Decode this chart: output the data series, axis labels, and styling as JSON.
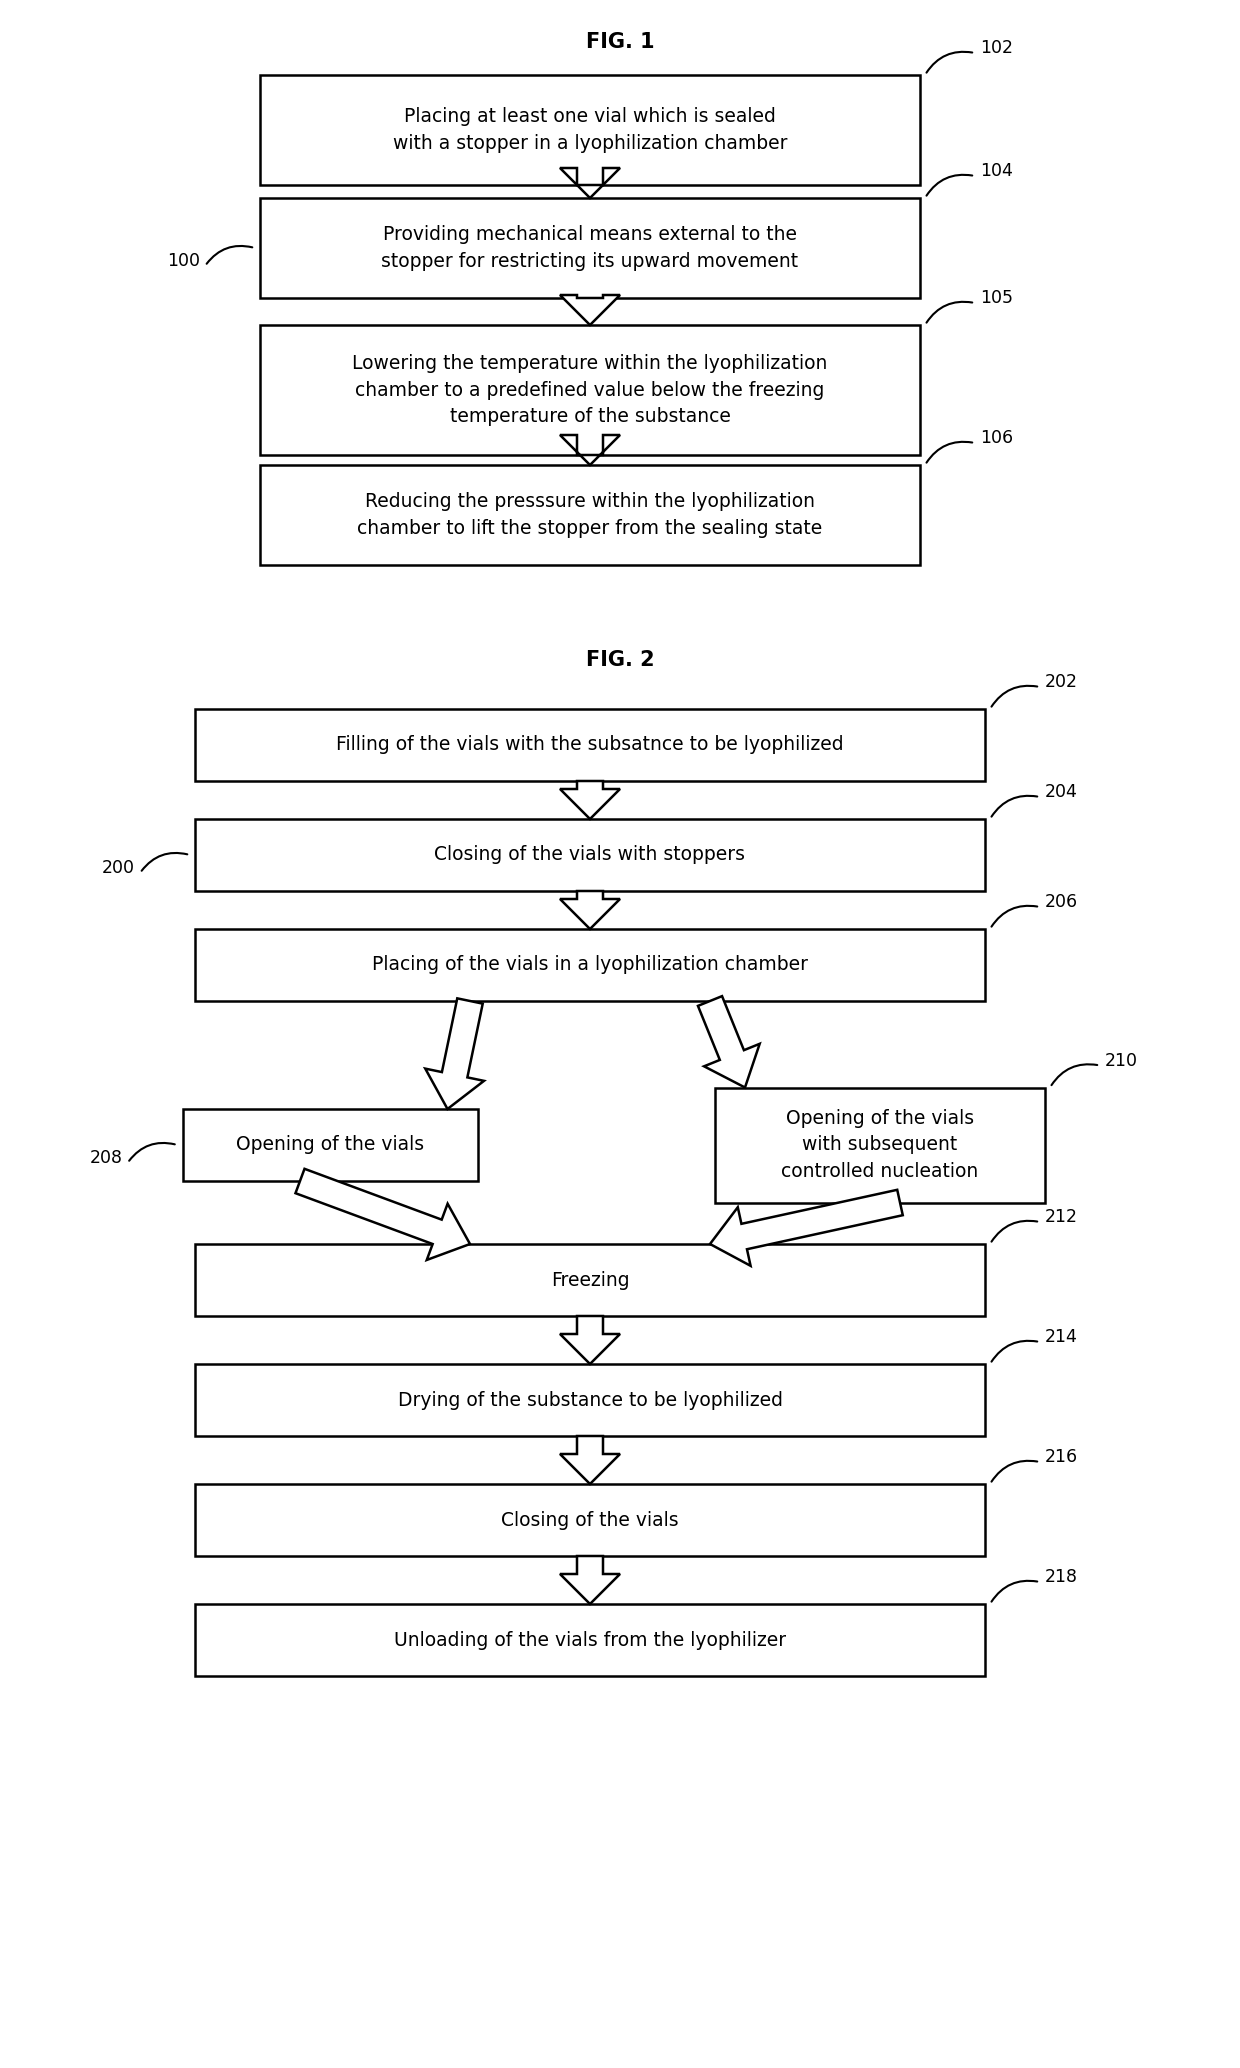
{
  "fig1_title": "FIG. 1",
  "fig2_title": "FIG. 2",
  "bg_color": "#ffffff",
  "box_edge_color": "#000000",
  "box_fill_color": "#ffffff",
  "text_color": "#000000",
  "arrow_color": "#000000",
  "fig1_boxes": [
    {
      "text": "Placing at least one vial which is sealed\nwith a stopper in a lyophilization chamber",
      "label": "102"
    },
    {
      "text": "Providing mechanical means external to the\nstopper for restricting its upward movement",
      "label": "104"
    },
    {
      "text": "Lowering the temperature within the lyophilization\nchamber to a predefined value below the freezing\ntemperature of the substance",
      "label": "105"
    },
    {
      "text": "Reducing the presssure within the lyophilization\nchamber to lift the stopper from the sealing state",
      "label": "106"
    }
  ],
  "fig2_boxes_main": [
    {
      "text": "Filling of the vials with the subsatnce to be lyophilized",
      "label": "202"
    },
    {
      "text": "Closing of the vials with stoppers",
      "label": "204"
    },
    {
      "text": "Placing of the vials in a lyophilization chamber",
      "label": "206"
    },
    {
      "text": "Freezing",
      "label": "212"
    },
    {
      "text": "Drying of the substance to be lyophilized",
      "label": "214"
    },
    {
      "text": "Closing of the vials",
      "label": "216"
    },
    {
      "text": "Unloading of the vials from the lyophilizer",
      "label": "218"
    }
  ],
  "fig2_branch_left": {
    "text": "Opening of the vials",
    "label": "208"
  },
  "fig2_branch_right": {
    "text": "Opening of the vials\nwith subsequent\ncontrolled nucleation",
    "label": "210"
  }
}
